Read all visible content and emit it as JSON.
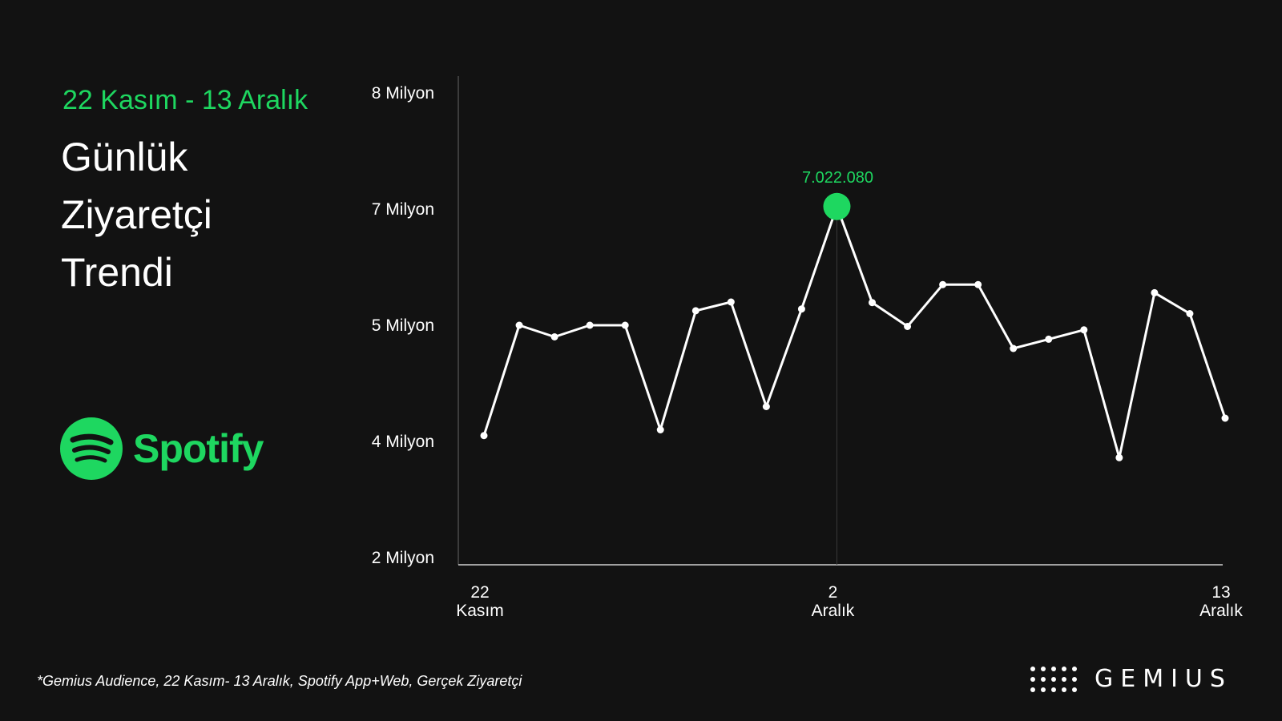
{
  "header": {
    "date_range": "22 Kasım - 13 Aralık",
    "title_lines": [
      "Günlük",
      "Ziyaretçi",
      "Trendi"
    ]
  },
  "brand": {
    "name": "Spotify",
    "color": "#1ed760"
  },
  "footnote": "*Gemius Audience, 22 Kasım- 13 Aralık, Spotify App+Web, Gerçek Ziyaretçi",
  "source_logo": "GEMIUS",
  "chart_data": {
    "type": "line",
    "title": "Günlük Ziyaretçi Trendi",
    "y_ticks": [
      {
        "value": 8000000,
        "label": "8 Milyon"
      },
      {
        "value": 7000000,
        "label": "7 Milyon"
      },
      {
        "value": 5000000,
        "label": "5 Milyon"
      },
      {
        "value": 4000000,
        "label": "4 Milyon"
      },
      {
        "value": 2000000,
        "label": "2 Milyon"
      }
    ],
    "x_ticks": [
      {
        "index": 0,
        "lines": [
          "22",
          "Kasım"
        ]
      },
      {
        "index": 10,
        "lines": [
          "2",
          "Aralık"
        ]
      },
      {
        "index": 21,
        "lines": [
          "13",
          "Aralık"
        ]
      }
    ],
    "x": [
      "22 Kasım",
      "23 Kasım",
      "24 Kasım",
      "25 Kasım",
      "26 Kasım",
      "27 Kasım",
      "28 Kasım",
      "29 Kasım",
      "30 Kasım",
      "1 Aralık",
      "2 Aralık",
      "3 Aralık",
      "4 Aralık",
      "5 Aralık",
      "6 Aralık",
      "7 Aralık",
      "8 Aralık",
      "9 Aralık",
      "10 Aralık",
      "11 Aralık",
      "12 Aralık",
      "13 Aralık"
    ],
    "values": [
      4050000,
      5000000,
      4900000,
      5000000,
      5000000,
      4100000,
      5250000,
      5400000,
      4300000,
      5280000,
      7022080,
      5390000,
      4990000,
      5700000,
      5700000,
      4800000,
      4880000,
      4960000,
      3720000,
      5560000,
      5200000,
      4200000
    ],
    "highlight": {
      "index": 10,
      "label": "7.022.080"
    },
    "line_color": "#ffffff",
    "highlight_color": "#1ed760",
    "grid": false
  }
}
